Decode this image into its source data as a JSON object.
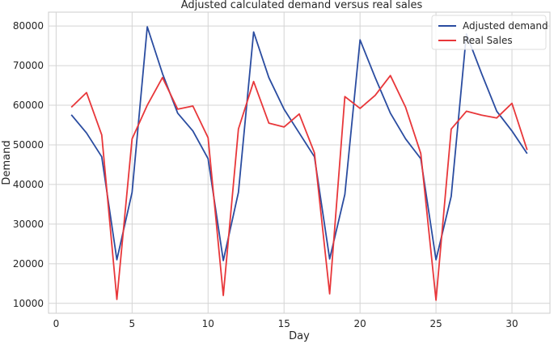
{
  "chart_data": {
    "type": "line",
    "title": "Adjusted calculated demand versus real sales",
    "xlabel": "Day",
    "ylabel": "Demand",
    "xlim": [
      -0.5,
      32.5
    ],
    "ylim": [
      7500,
      83500
    ],
    "xticks": [
      0,
      5,
      10,
      15,
      20,
      25,
      30
    ],
    "yticks": [
      10000,
      20000,
      30000,
      40000,
      50000,
      60000,
      70000,
      80000
    ],
    "grid": true,
    "legend_position": "top-right",
    "x": [
      1,
      2,
      3,
      4,
      5,
      6,
      7,
      8,
      9,
      10,
      11,
      12,
      13,
      14,
      15,
      16,
      17,
      18,
      19,
      20,
      21,
      22,
      23,
      24,
      25,
      26,
      27,
      28,
      29,
      30,
      31
    ],
    "series": [
      {
        "name": "Adjusted demand",
        "color": "#2a4ca0",
        "values": [
          57600,
          53000,
          47000,
          21000,
          38000,
          79800,
          68000,
          58000,
          53500,
          46500,
          20800,
          38000,
          78500,
          67000,
          59000,
          53000,
          47000,
          21200,
          37500,
          76500,
          67000,
          58000,
          51500,
          46500,
          21000,
          37000,
          78000,
          68000,
          58500,
          53500,
          47800
        ]
      },
      {
        "name": "Real Sales",
        "color": "#e8373a",
        "values": [
          59500,
          63200,
          52500,
          11000,
          51500,
          60000,
          67000,
          59000,
          59800,
          51800,
          12000,
          54000,
          66000,
          55500,
          54500,
          57800,
          48000,
          12400,
          62200,
          59200,
          62500,
          67500,
          59500,
          47800,
          10800,
          54000,
          58500,
          57500,
          56800,
          60500,
          48700
        ]
      }
    ]
  }
}
